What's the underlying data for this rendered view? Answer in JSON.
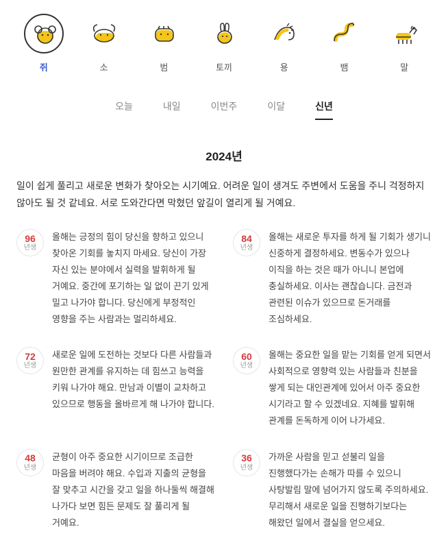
{
  "zodiac": [
    {
      "label": "쥐",
      "name": "rat",
      "selected": true
    },
    {
      "label": "소",
      "name": "ox",
      "selected": false
    },
    {
      "label": "범",
      "name": "tiger",
      "selected": false
    },
    {
      "label": "토끼",
      "name": "rabbit",
      "selected": false
    },
    {
      "label": "용",
      "name": "dragon",
      "selected": false
    },
    {
      "label": "뱀",
      "name": "snake",
      "selected": false
    },
    {
      "label": "말",
      "name": "horse",
      "selected": false
    }
  ],
  "tabs": [
    {
      "label": "오늘",
      "selected": false
    },
    {
      "label": "내일",
      "selected": false
    },
    {
      "label": "이번주",
      "selected": false
    },
    {
      "label": "이달",
      "selected": false
    },
    {
      "label": "신년",
      "selected": true
    }
  ],
  "year_title": "2024년",
  "intro": "일이 쉽게 풀리고 새로운 변화가 찾아오는 시기예요. 어려운 일이 생겨도 주변에서 도움을 주니 걱정하지 않아도 될 것 같네요. 서로 도와간다면 막혔던 앞길이 열리게 될 거예요.",
  "year_suffix": "년생",
  "entries": [
    {
      "year": "96",
      "text": "올해는 긍정의 힘이 당신을 향하고 있으니 찾아온 기회를 놓치지 마세요. 당신이 가장 자신 있는 분야에서 실력을 발휘하게 될 거예요. 중간에 포기하는 일 없이 끈기 있게 밀고 나가야 합니다. 당신에게 부정적인 영향을 주는 사람과는 멀리하세요."
    },
    {
      "year": "84",
      "text": "올해는 새로운 투자를 하게 될 기회가 생기니 신중하게 결정하세요. 변동수가 있으나 이직을 하는 것은 때가 아니니 본업에 충실하세요. 이사는 괜찮습니다. 금전과 관련된 이슈가 있으므로 돈거래를 조심하세요."
    },
    {
      "year": "72",
      "text": "새로운 일에 도전하는 것보다 다른 사람들과 원만한 관계를 유지하는 데 힘쓰고 능력을 키워 나가야 해요. 만남과 이별이 교차하고 있으므로 행동을 올바르게 해 나가야 합니다."
    },
    {
      "year": "60",
      "text": "올해는 중요한 일을 맡는 기회를 얻게 되면서 사회적으로 영향력 있는 사람들과 친분을 쌓게 되는 대인관계에 있어서 아주 중요한 시기라고 할 수 있겠네요. 지혜를 발휘해 관계를 돈독하게 이어 나가세요."
    },
    {
      "year": "48",
      "text": "균형이 아주 중요한 시기이므로 조급한 마음을 버려야 해요. 수입과 지출의 균형을 잘 맞추고 시간을 갖고 일을 하나둘씩 해결해 나가다 보면 힘든 문제도 잘 풀리게 될 거예요."
    },
    {
      "year": "36",
      "text": "가까운 사람을 믿고 섣불리 일을 진행했다가는 손해가 따를 수 있으니 사탕발림 말에 넘어가지 않도록 주의하세요. 무리해서 새로운 일을 진행하기보다는 해왔던 일에서 결실을 얻으세요."
    }
  ],
  "colors": {
    "accent_yellow": "#f5c518",
    "stroke": "#333333",
    "badge_red": "#d63a3a"
  }
}
